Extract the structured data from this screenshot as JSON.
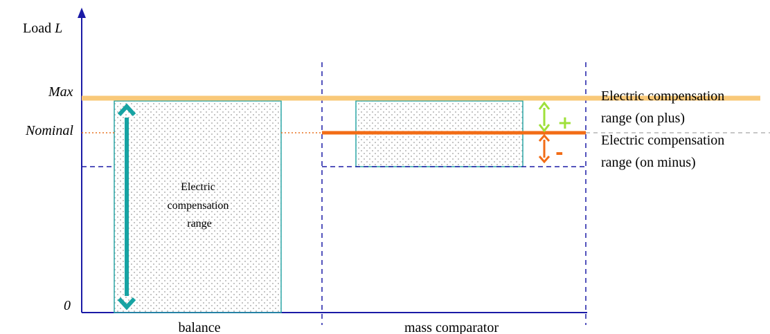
{
  "y_axis": {
    "label_prefix": "Load ",
    "label_var": "L"
  },
  "levels": {
    "max": "Max",
    "nominal": "Nominal",
    "zero": "0"
  },
  "columns": {
    "left": "balance",
    "right": "mass comparator"
  },
  "balance_box": {
    "line1": "Electric",
    "line2": "compensation",
    "line3": "range"
  },
  "right_labels": {
    "plus_line1": "Electric compensation",
    "plus_line2": "range (on plus)",
    "minus_line1": "Electric compensation",
    "minus_line2": "range (on minus)"
  },
  "signs": {
    "plus": "+",
    "minus": "-"
  },
  "colors": {
    "axis": "#1a1aa6",
    "max_line": "#f9c979",
    "nominal_line": "#f26c16",
    "nominal_dotted": "#e8701f",
    "teal": "#17a3a3",
    "box_border": "#2aa5a5",
    "dash": "#1a1aa6",
    "plus": "#9fe03a",
    "minus": "#f26c16",
    "grey_dash": "#b4b4b4"
  }
}
